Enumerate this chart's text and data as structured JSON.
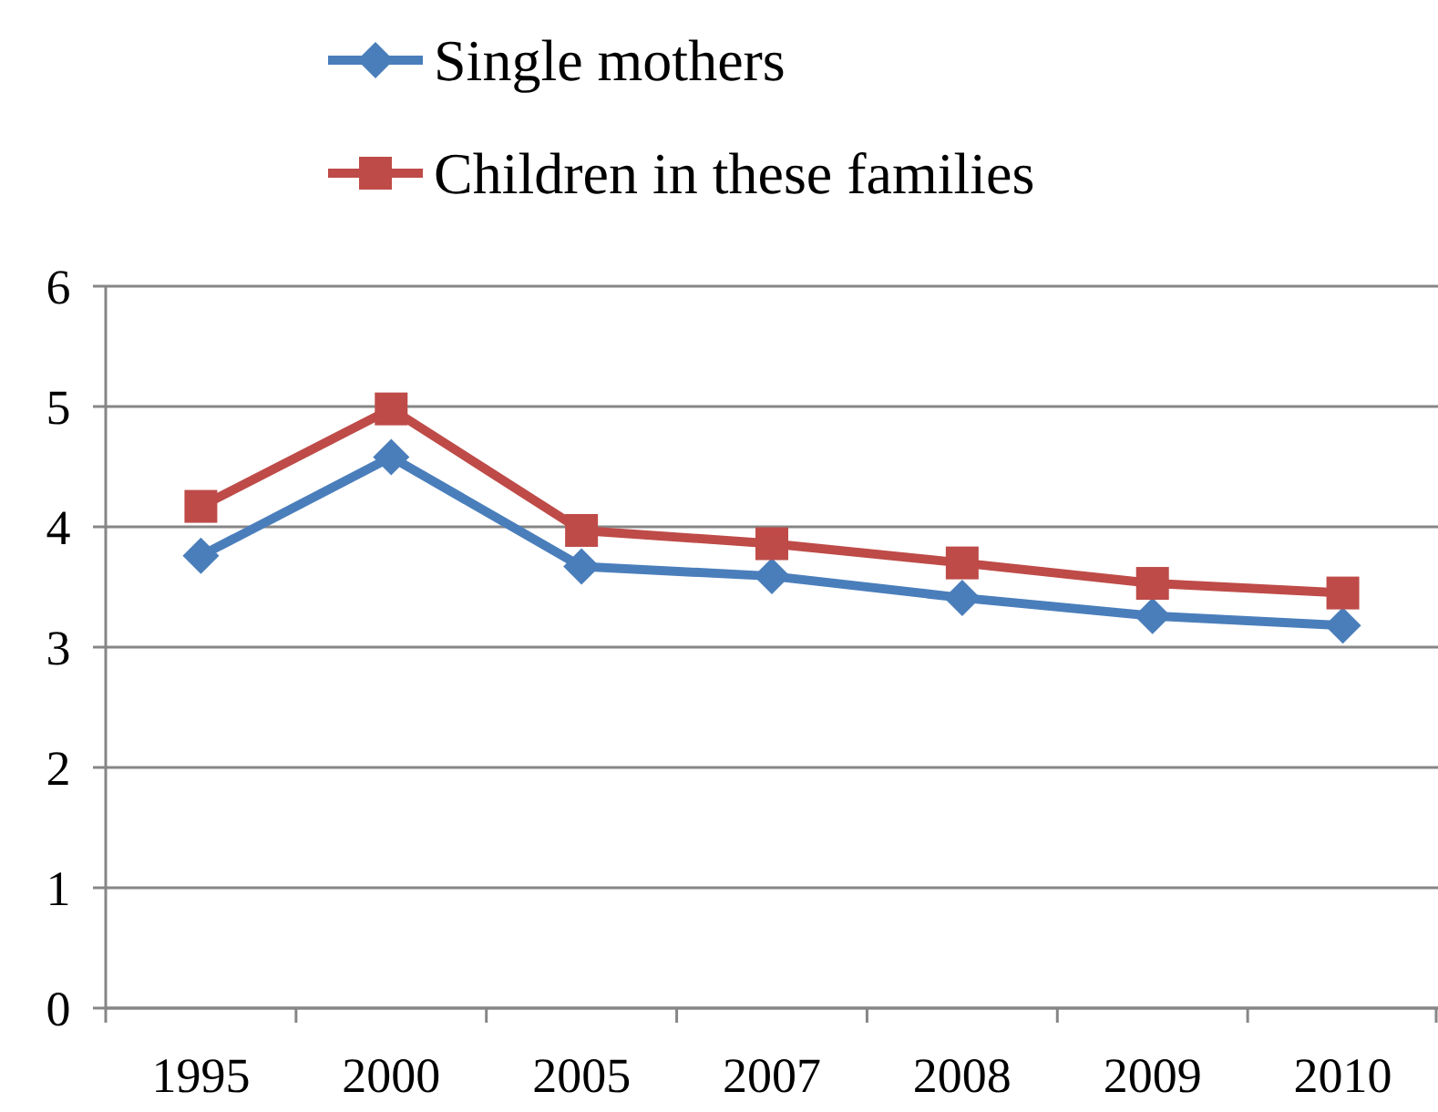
{
  "chart_data": {
    "type": "line",
    "categories": [
      "1995",
      "2000",
      "2005",
      "2007",
      "2008",
      "2009",
      "2010"
    ],
    "series": [
      {
        "name": "Single mothers",
        "color": "#4a7ebb",
        "marker": "diamond",
        "values": [
          3.76,
          4.58,
          3.67,
          3.59,
          3.41,
          3.26,
          3.18
        ]
      },
      {
        "name": "Children in these families",
        "color": "#be4b48",
        "marker": "square",
        "values": [
          4.17,
          4.98,
          3.97,
          3.86,
          3.7,
          3.53,
          3.45
        ]
      }
    ],
    "ylim": [
      0,
      6
    ],
    "yticks": [
      0,
      1,
      2,
      3,
      4,
      5,
      6
    ],
    "grid": "y",
    "legend": "top"
  }
}
